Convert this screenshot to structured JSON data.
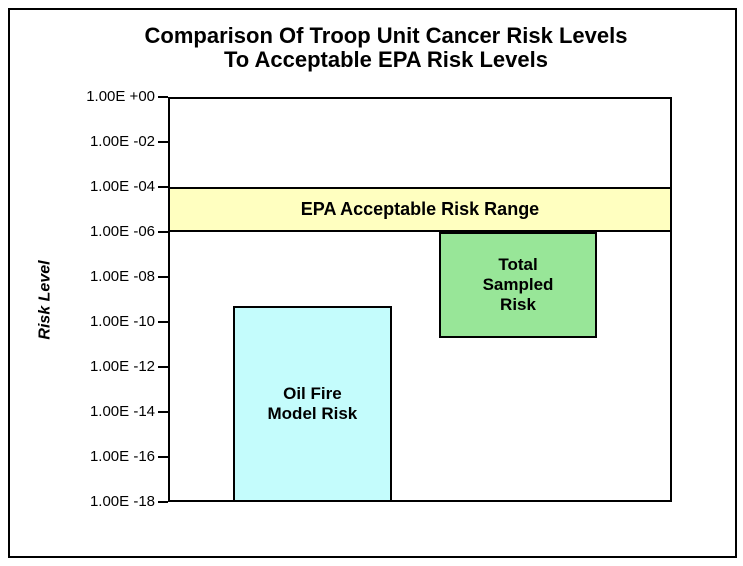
{
  "title": {
    "line1": "Comparison Of Troop Unit Cancer Risk Levels",
    "line2": "To Acceptable EPA Risk Levels"
  },
  "colors": {
    "epa_band": "#FFFFC0",
    "oil_fire_bar": "#C4FCFC",
    "total_sampled_bar": "#98E698",
    "axis": "#000000",
    "background": "#FFFFFF"
  },
  "chart_data": {
    "type": "bar",
    "subtype": "floating-range-bars",
    "title": "Comparison Of Troop Unit Cancer Risk Levels To Acceptable EPA Risk Levels",
    "xlabel": "",
    "ylabel": "Risk Level",
    "y_scale": "log10",
    "ylim": [
      1e-18,
      1.0
    ],
    "grid": false,
    "legend": "none",
    "y_ticks": [
      {
        "label": "1.00E +00",
        "value": 1.0
      },
      {
        "label": "1.00E -02",
        "value": 0.01
      },
      {
        "label": "1.00E -04",
        "value": 0.0001
      },
      {
        "label": "1.00E -06",
        "value": 1e-06
      },
      {
        "label": "1.00E -08",
        "value": 1e-08
      },
      {
        "label": "1.00E -10",
        "value": 1e-10
      },
      {
        "label": "1.00E -12",
        "value": 1e-12
      },
      {
        "label": "1.00E -14",
        "value": 1e-14
      },
      {
        "label": "1.00E -16",
        "value": 1e-16
      },
      {
        "label": "1.00E -18",
        "value": 1e-18
      }
    ],
    "bands": [
      {
        "name": "epa-acceptable-risk-range",
        "label": "EPA Acceptable Risk Range",
        "from": 1e-06,
        "to": 0.0001,
        "color": "#FFFFC0"
      }
    ],
    "series": [
      {
        "name": "oil-fire-model-risk",
        "label_lines": [
          "Oil Fire",
          "Model Risk"
        ],
        "low": 1e-18,
        "high": 5e-10,
        "color": "#C4FCFC",
        "x_frac": 0.129,
        "w_frac": 0.315
      },
      {
        "name": "total-sampled-risk",
        "label_lines": [
          "Total",
          "Sampled",
          "Risk"
        ],
        "low": 2e-11,
        "high": 1e-06,
        "color": "#98E698",
        "x_frac": 0.538,
        "w_frac": 0.313
      }
    ]
  }
}
